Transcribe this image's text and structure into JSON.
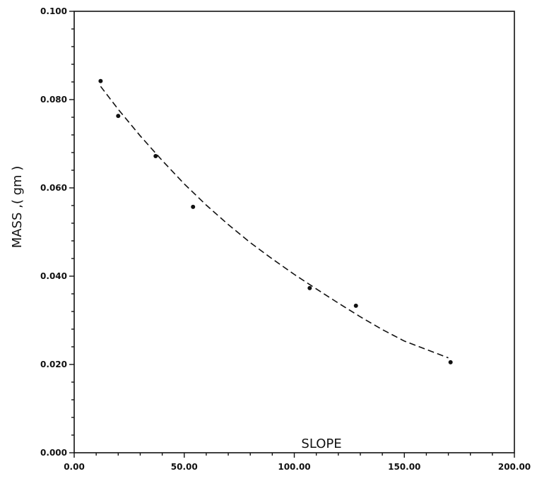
{
  "chart_data": {
    "type": "scatter",
    "title": "",
    "xlabel": "SLOPE",
    "ylabel": "MASS ,( gm )",
    "xlim": [
      0,
      200
    ],
    "ylim": [
      0,
      0.1
    ],
    "x_ticks": [
      0,
      50,
      100,
      150,
      200
    ],
    "x_tick_labels": [
      "0.00",
      "50.00",
      "100.00",
      "150.00",
      "200.00"
    ],
    "y_ticks": [
      0,
      0.02,
      0.04,
      0.06,
      0.08,
      0.1
    ],
    "y_tick_labels": [
      "0.000",
      "0.020",
      "0.040",
      "0.060",
      "0.080",
      "0.100"
    ],
    "grid": false,
    "series": [
      {
        "kind": "points",
        "points": [
          {
            "x": 12,
            "y": 0.0842
          },
          {
            "x": 20,
            "y": 0.0763
          },
          {
            "x": 37,
            "y": 0.0672
          },
          {
            "x": 54,
            "y": 0.0557
          },
          {
            "x": 107,
            "y": 0.0373
          },
          {
            "x": 128,
            "y": 0.0333
          },
          {
            "x": 171,
            "y": 0.0205
          }
        ]
      },
      {
        "kind": "fit",
        "style": "dashed",
        "points": [
          {
            "x": 12,
            "y": 0.083
          },
          {
            "x": 20,
            "y": 0.0778
          },
          {
            "x": 30,
            "y": 0.0718
          },
          {
            "x": 40,
            "y": 0.0662
          },
          {
            "x": 50,
            "y": 0.0609
          },
          {
            "x": 60,
            "y": 0.0561
          },
          {
            "x": 70,
            "y": 0.0517
          },
          {
            "x": 80,
            "y": 0.0476
          },
          {
            "x": 90,
            "y": 0.0439
          },
          {
            "x": 100,
            "y": 0.0404
          },
          {
            "x": 110,
            "y": 0.0371
          },
          {
            "x": 120,
            "y": 0.0339
          },
          {
            "x": 130,
            "y": 0.0308
          },
          {
            "x": 140,
            "y": 0.0279
          },
          {
            "x": 150,
            "y": 0.0253
          },
          {
            "x": 160,
            "y": 0.0234
          },
          {
            "x": 170,
            "y": 0.0215
          }
        ]
      }
    ]
  }
}
